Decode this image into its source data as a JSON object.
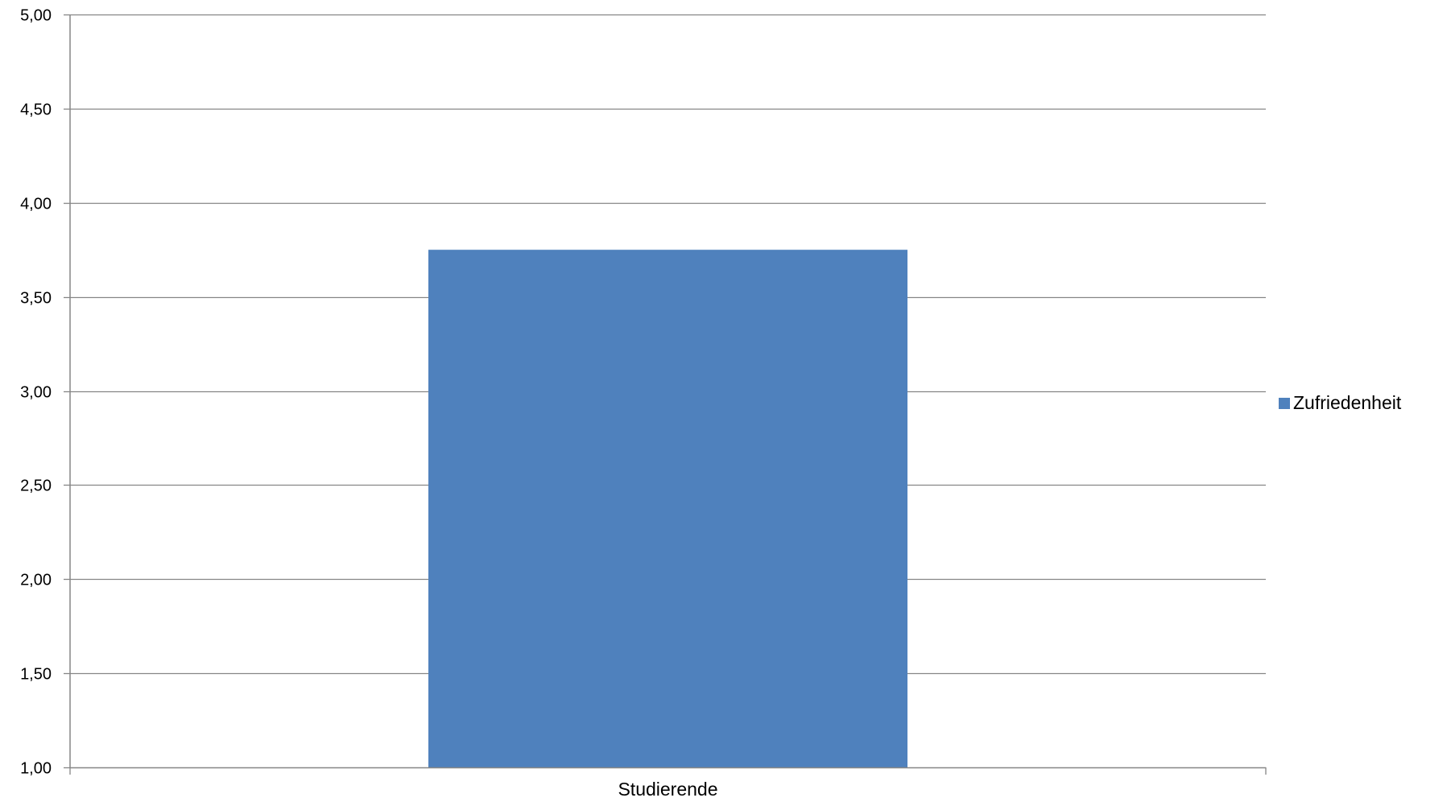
{
  "chart_data": {
    "type": "bar",
    "categories": [
      "Studierende"
    ],
    "series": [
      {
        "name": "Zufriedenheit",
        "values": [
          3.75
        ],
        "color": "#4F81BD"
      }
    ],
    "title": "",
    "xlabel": "",
    "ylabel": "",
    "ylim": [
      1.0,
      5.0
    ],
    "yticks": [
      "1,00",
      "1,50",
      "2,00",
      "2,50",
      "3,00",
      "3,50",
      "4,00",
      "4,50",
      "5,00"
    ],
    "grid": true,
    "gridline_color": "#868686",
    "legend_position": "right"
  }
}
